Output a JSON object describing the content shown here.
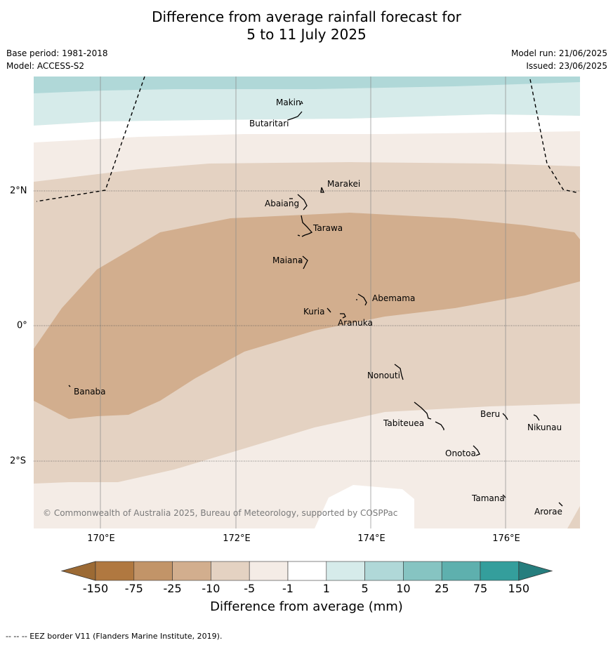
{
  "title_line1": "Difference from average rainfall forecast for",
  "title_line2": "5 to 11 July 2025",
  "meta_left": {
    "base_period": "Base period: 1981-2018",
    "model": "Model: ACCESS-S2"
  },
  "meta_right": {
    "model_run": "Model run: 21/06/2025",
    "issued": "Issued: 23/06/2025"
  },
  "axes": {
    "lon_ticks": [
      "170°E",
      "172°E",
      "174°E",
      "176°E"
    ],
    "lat_ticks": [
      "2°N",
      "0°",
      "2°S"
    ]
  },
  "places": {
    "makin": "Makin",
    "butaritari": "Butaritari",
    "marakei": "Marakei",
    "abaiang": "Abaiang",
    "tarawa": "Tarawa",
    "maiana": "Maiana",
    "abemama": "Abemama",
    "kuria": "Kuria",
    "aranuka": "Aranuka",
    "banaba": "Banaba",
    "nonouti": "Nonouti",
    "beru": "Beru",
    "tabiteuea": "Tabiteuea",
    "nikunau": "Nikunau",
    "onotoa": "Onotoa",
    "tamana": "Tamana",
    "arorae": "Arorae"
  },
  "copyright": "© Commonwealth of Australia 2025, Bureau of Meteorology, supported by COSPPac",
  "colorbar": {
    "title": "Difference from average (mm)",
    "labels": [
      "-150",
      "-75",
      "-25",
      "-10",
      "-5",
      "-1",
      "1",
      "5",
      "10",
      "25",
      "75",
      "150"
    ],
    "colors": [
      "#9c6a34",
      "#b07840",
      "#c29468",
      "#d2ae8e",
      "#e4d2c2",
      "#f4ece6",
      "#ffffff",
      "#d6ebea",
      "#b0d8d8",
      "#86c4c2",
      "#5eb0ae",
      "#349e9c",
      "#267e7e"
    ]
  },
  "footnote": "--  --  -- EEZ border V11 (Flanders Marine Institute, 2019)."
}
